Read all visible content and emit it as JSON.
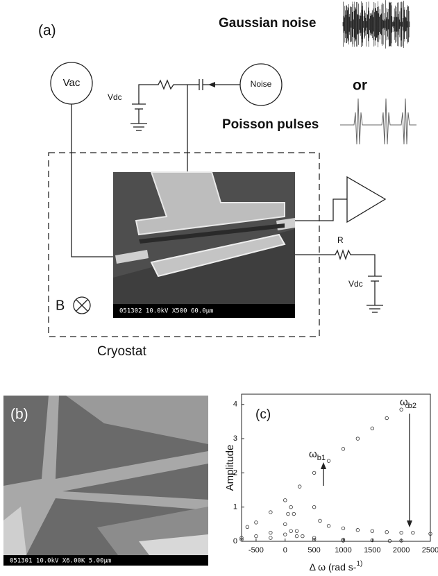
{
  "panel_a": {
    "label": "(a)",
    "noise_title": "Gaussian noise",
    "or": "or",
    "pulses_title": "Poisson pulses",
    "vac": "Vac",
    "noise_source": "Noise",
    "vdc_left": "Vdc",
    "vdc_right": "Vdc",
    "resistor": "R",
    "field": "B",
    "cryostat": "Cryostat",
    "sem_caption": "051302 10.0kV X500 60.0µm"
  },
  "panel_b": {
    "label": "(b)",
    "sem_caption": "051301 10.0kV X6.00K 5.00µm"
  },
  "chart_data": {
    "type": "scatter",
    "label": "(c)",
    "ylabel": "Amplitude",
    "xlabel": "Δ ω (rad s-1)",
    "annotations": [
      "ωb1",
      "ωb2"
    ],
    "xlim": [
      -750,
      2500
    ],
    "ylim": [
      0,
      4.3
    ],
    "xticks": [
      -500,
      0,
      500,
      1000,
      1500,
      2000,
      2500
    ],
    "yticks": [
      0,
      1,
      2,
      3,
      4
    ],
    "color": "#333333",
    "series": [
      {
        "x": [
          -650,
          -500,
          -250,
          0,
          250,
          500,
          750,
          1000,
          1250,
          1500,
          1750,
          2000,
          2100
        ],
        "values": [
          0.42,
          0.55,
          0.85,
          1.2,
          1.6,
          2.0,
          2.35,
          2.7,
          3.0,
          3.3,
          3.6,
          3.85,
          3.95
        ]
      },
      {
        "x": [
          500,
          600,
          750,
          1000,
          1250,
          1500,
          1750,
          2000,
          2200,
          2500
        ],
        "values": [
          1.0,
          0.6,
          0.45,
          0.38,
          0.33,
          0.3,
          0.27,
          0.25,
          0.25,
          0.22
        ]
      },
      {
        "x": [
          -750,
          -500,
          -250,
          0,
          50,
          100,
          150,
          200,
          300,
          500,
          1000,
          1500,
          2000
        ],
        "values": [
          0.1,
          0.15,
          0.25,
          0.5,
          0.8,
          1.0,
          0.8,
          0.3,
          0.15,
          0.1,
          0.05,
          0.03,
          0.02
        ]
      },
      {
        "x": [
          -750,
          -250,
          0,
          100,
          200,
          500,
          1000,
          1800
        ],
        "values": [
          0.05,
          0.1,
          0.2,
          0.3,
          0.15,
          0.05,
          0.02,
          0.01
        ]
      }
    ]
  }
}
